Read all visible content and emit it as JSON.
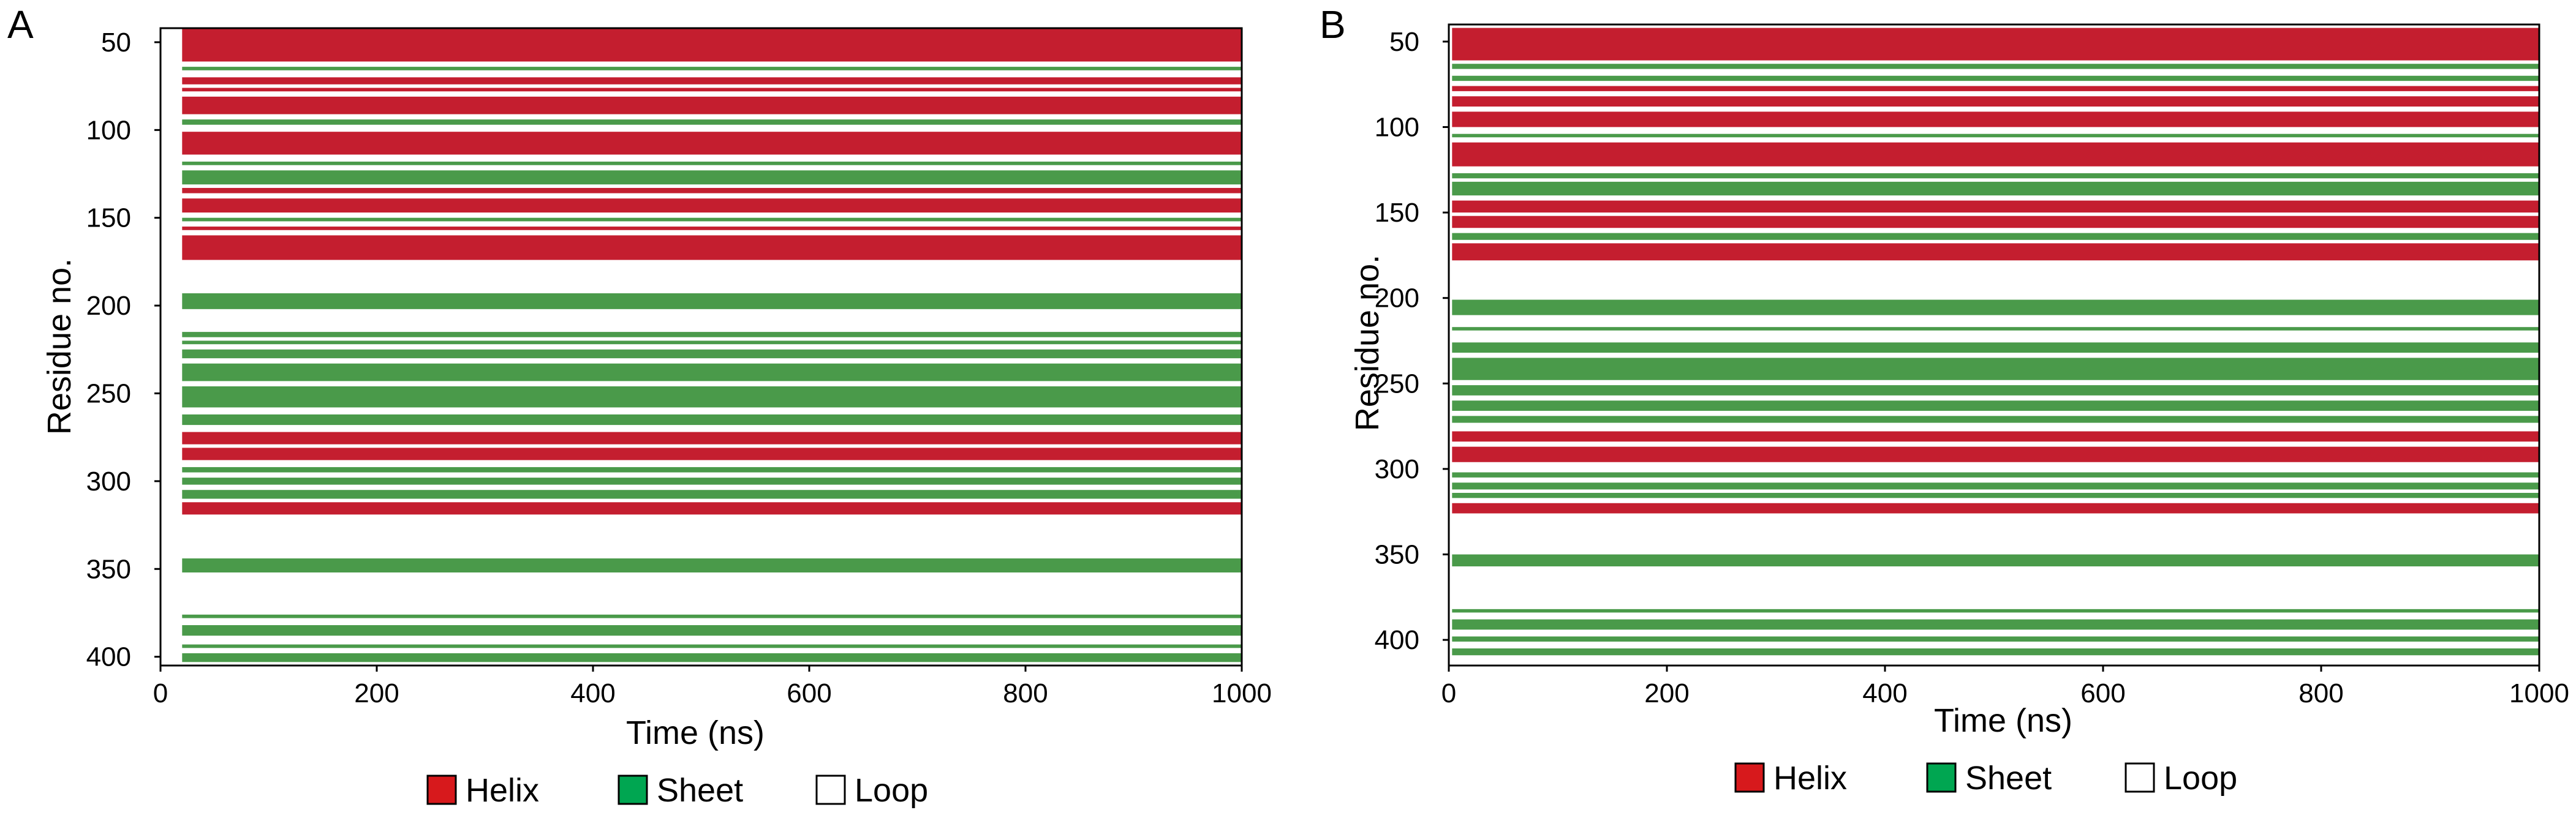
{
  "chart_data": [
    {
      "type": "heatmap",
      "panel_label": "A",
      "xlabel": "Time (ns)",
      "ylabel": "Residue no.",
      "xlim": [
        0,
        1000
      ],
      "ylim": [
        42,
        405
      ],
      "x_ticks": [
        "0",
        "200",
        "400",
        "600",
        "800",
        "1000"
      ],
      "x_tick_values": [
        0,
        200,
        400,
        600,
        800,
        1000
      ],
      "y_ticks": [
        "50",
        "100",
        "150",
        "200",
        "250",
        "300",
        "350",
        "400"
      ],
      "y_tick_values": [
        50,
        100,
        150,
        200,
        250,
        300,
        350,
        400
      ],
      "data_x_start": 20,
      "legend": [
        {
          "label": "Helix",
          "color": "#d7191c"
        },
        {
          "label": "Sheet",
          "color": "#00a651"
        },
        {
          "label": "Loop",
          "color": "#ffffff"
        }
      ],
      "segments": [
        {
          "start": 42,
          "end": 61,
          "ss": "helix"
        },
        {
          "start": 64,
          "end": 66,
          "ss": "sheet"
        },
        {
          "start": 70,
          "end": 74,
          "ss": "helix"
        },
        {
          "start": 76,
          "end": 78,
          "ss": "helix"
        },
        {
          "start": 81,
          "end": 91,
          "ss": "helix"
        },
        {
          "start": 94,
          "end": 97,
          "ss": "sheet"
        },
        {
          "start": 101,
          "end": 114,
          "ss": "helix"
        },
        {
          "start": 118,
          "end": 120,
          "ss": "sheet"
        },
        {
          "start": 123,
          "end": 131,
          "ss": "sheet"
        },
        {
          "start": 133,
          "end": 136,
          "ss": "helix"
        },
        {
          "start": 139,
          "end": 147,
          "ss": "helix"
        },
        {
          "start": 150,
          "end": 152,
          "ss": "sheet"
        },
        {
          "start": 155,
          "end": 157,
          "ss": "helix"
        },
        {
          "start": 160,
          "end": 174,
          "ss": "helix"
        },
        {
          "start": 193,
          "end": 202,
          "ss": "sheet"
        },
        {
          "start": 215,
          "end": 218,
          "ss": "sheet"
        },
        {
          "start": 220,
          "end": 222,
          "ss": "sheet"
        },
        {
          "start": 225,
          "end": 230,
          "ss": "sheet"
        },
        {
          "start": 233,
          "end": 243,
          "ss": "sheet"
        },
        {
          "start": 246,
          "end": 258,
          "ss": "sheet"
        },
        {
          "start": 262,
          "end": 268,
          "ss": "sheet"
        },
        {
          "start": 272,
          "end": 279,
          "ss": "helix"
        },
        {
          "start": 281,
          "end": 288,
          "ss": "helix"
        },
        {
          "start": 292,
          "end": 295,
          "ss": "sheet"
        },
        {
          "start": 298,
          "end": 302,
          "ss": "sheet"
        },
        {
          "start": 305,
          "end": 310,
          "ss": "sheet"
        },
        {
          "start": 312,
          "end": 319,
          "ss": "helix"
        },
        {
          "start": 344,
          "end": 352,
          "ss": "sheet"
        },
        {
          "start": 376,
          "end": 378,
          "ss": "sheet"
        },
        {
          "start": 382,
          "end": 388,
          "ss": "sheet"
        },
        {
          "start": 393,
          "end": 395,
          "ss": "sheet"
        },
        {
          "start": 398,
          "end": 403,
          "ss": "sheet"
        }
      ]
    },
    {
      "type": "heatmap",
      "panel_label": "B",
      "xlabel": "Time (ns)",
      "ylabel": "Residue no.",
      "xlim": [
        0,
        1000
      ],
      "ylim": [
        40,
        415
      ],
      "x_ticks": [
        "0",
        "200",
        "400",
        "600",
        "800",
        "1000"
      ],
      "x_tick_values": [
        0,
        200,
        400,
        600,
        800,
        1000
      ],
      "y_ticks": [
        "50",
        "100",
        "150",
        "200",
        "250",
        "300",
        "350",
        "400"
      ],
      "y_tick_values": [
        50,
        100,
        150,
        200,
        250,
        300,
        350,
        400
      ],
      "data_x_start": 3,
      "legend": [
        {
          "label": "Helix",
          "color": "#d7191c"
        },
        {
          "label": "Sheet",
          "color": "#00a651"
        },
        {
          "label": "Loop",
          "color": "#ffffff"
        }
      ],
      "segments": [
        {
          "start": 42,
          "end": 61,
          "ss": "helix"
        },
        {
          "start": 63,
          "end": 66,
          "ss": "sheet"
        },
        {
          "start": 70,
          "end": 73,
          "ss": "sheet"
        },
        {
          "start": 76,
          "end": 79,
          "ss": "helix"
        },
        {
          "start": 82,
          "end": 88,
          "ss": "helix"
        },
        {
          "start": 91,
          "end": 100,
          "ss": "helix"
        },
        {
          "start": 104,
          "end": 106,
          "ss": "sheet"
        },
        {
          "start": 109,
          "end": 123,
          "ss": "helix"
        },
        {
          "start": 127,
          "end": 130,
          "ss": "sheet"
        },
        {
          "start": 132,
          "end": 140,
          "ss": "sheet"
        },
        {
          "start": 143,
          "end": 150,
          "ss": "helix"
        },
        {
          "start": 152,
          "end": 159,
          "ss": "helix"
        },
        {
          "start": 162,
          "end": 166,
          "ss": "sheet"
        },
        {
          "start": 168,
          "end": 178,
          "ss": "helix"
        },
        {
          "start": 201,
          "end": 210,
          "ss": "sheet"
        },
        {
          "start": 217,
          "end": 219,
          "ss": "sheet"
        },
        {
          "start": 226,
          "end": 232,
          "ss": "sheet"
        },
        {
          "start": 235,
          "end": 248,
          "ss": "sheet"
        },
        {
          "start": 251,
          "end": 257,
          "ss": "sheet"
        },
        {
          "start": 260,
          "end": 266,
          "ss": "sheet"
        },
        {
          "start": 269,
          "end": 273,
          "ss": "sheet"
        },
        {
          "start": 278,
          "end": 284,
          "ss": "helix"
        },
        {
          "start": 287,
          "end": 296,
          "ss": "helix"
        },
        {
          "start": 302,
          "end": 305,
          "ss": "sheet"
        },
        {
          "start": 308,
          "end": 312,
          "ss": "sheet"
        },
        {
          "start": 314,
          "end": 317,
          "ss": "sheet"
        },
        {
          "start": 320,
          "end": 326,
          "ss": "helix"
        },
        {
          "start": 350,
          "end": 357,
          "ss": "sheet"
        },
        {
          "start": 382,
          "end": 384,
          "ss": "sheet"
        },
        {
          "start": 388,
          "end": 394,
          "ss": "sheet"
        },
        {
          "start": 398,
          "end": 401,
          "ss": "sheet"
        },
        {
          "start": 405,
          "end": 409,
          "ss": "sheet"
        }
      ]
    }
  ]
}
